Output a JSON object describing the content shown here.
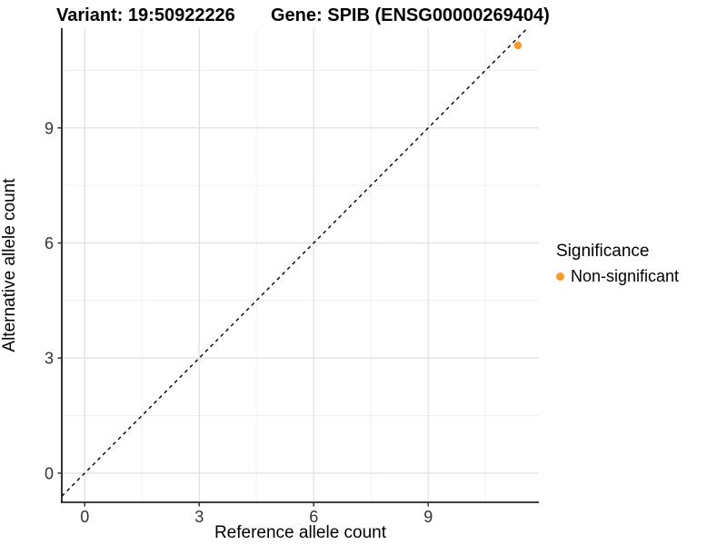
{
  "titles": {
    "variant": "Variant: 19:50922226",
    "gene": "Gene: SPIB (ENSG00000269404)"
  },
  "chart_data": {
    "type": "scatter",
    "xlabel": "Reference allele count",
    "ylabel": "Alternative allele count",
    "x_ticks": [
      0,
      3,
      6,
      9
    ],
    "y_ticks": [
      0,
      3,
      6,
      9
    ],
    "x_minor_gridlines": [
      1.5,
      4.5,
      7.5,
      10.5
    ],
    "y_minor_gridlines": [
      1.5,
      4.5,
      7.5,
      10.5
    ],
    "xlim": [
      -0.6,
      11.9
    ],
    "ylim": [
      -0.76,
      11.6
    ],
    "grid": true,
    "series": [
      {
        "name": "Non-significant",
        "points": [
          {
            "x": 11.35,
            "y": 11.15
          }
        ]
      }
    ],
    "reference_line": {
      "equation": "y = x",
      "style": "dashed",
      "color": "#000000"
    },
    "legend": {
      "position": "right",
      "title": "Significance",
      "entries": [
        {
          "label": "Non-significant",
          "color": "#F99B2C"
        }
      ]
    }
  },
  "colors": {
    "point": "#F99B2C",
    "grid_major": "#E3E3E3",
    "grid_minor": "#EDEDED",
    "axis_line": "#000000",
    "tick_mark": "#333333",
    "tick_label": "#333333",
    "title_text": "#000000",
    "background": "#FFFFFF"
  }
}
